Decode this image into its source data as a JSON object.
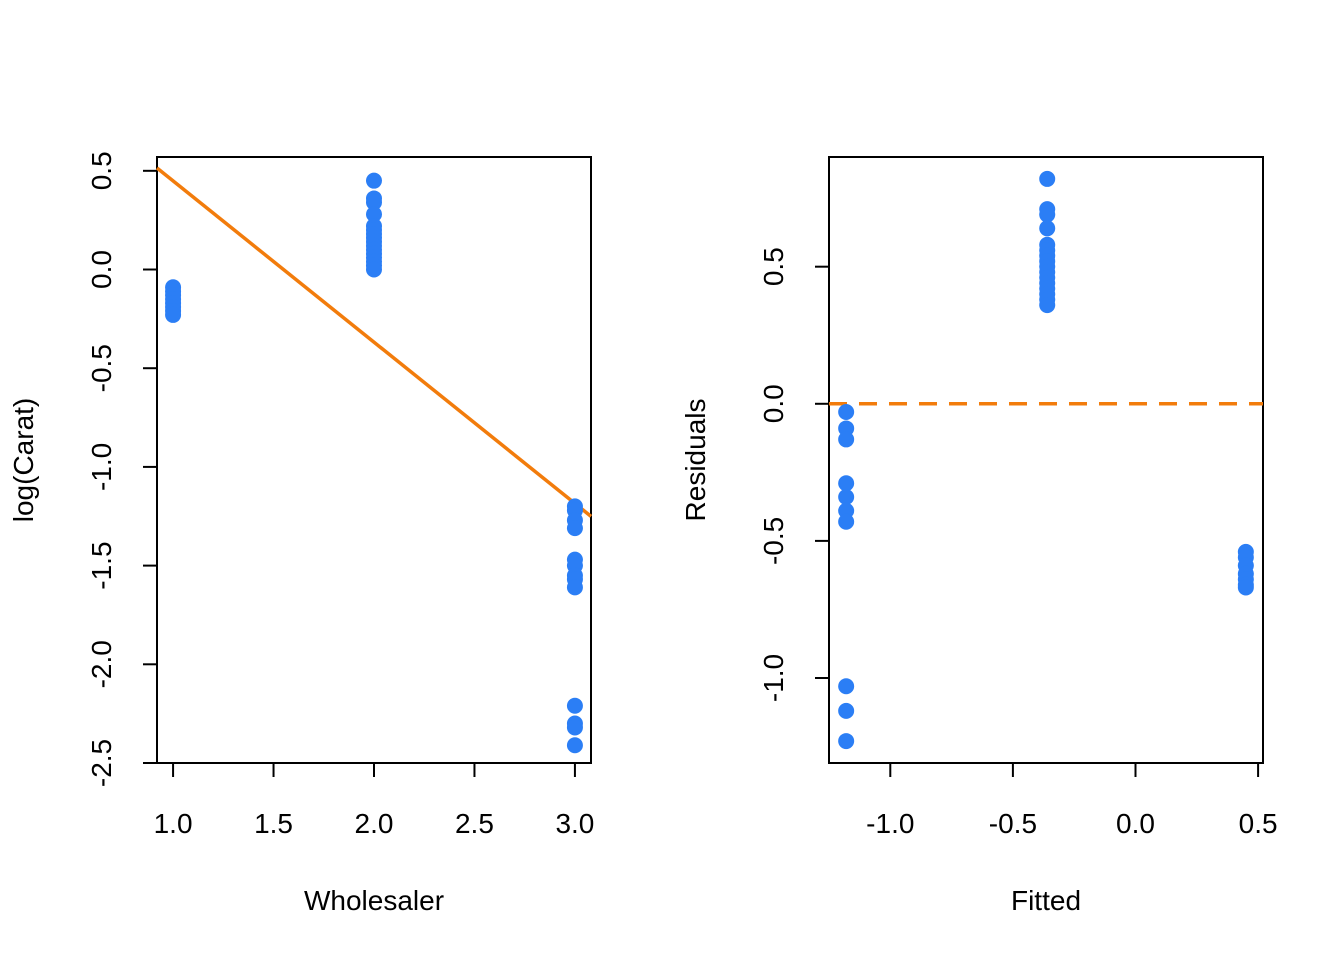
{
  "colors": {
    "points": "#2b7ef5",
    "line": "#f27c0c",
    "axes": "#000000",
    "background": "#ffffff"
  },
  "chart_data": [
    {
      "type": "scatter",
      "xlabel": "Wholesaler",
      "ylabel": "log(Carat)",
      "xlim": [
        0.92,
        3.08
      ],
      "ylim": [
        -2.5,
        0.57
      ],
      "x_ticks": [
        1.0,
        1.5,
        2.0,
        2.5,
        3.0
      ],
      "x_tick_labels": [
        "1.0",
        "1.5",
        "2.0",
        "2.5",
        "3.0"
      ],
      "y_ticks": [
        0.5,
        0.0,
        -0.5,
        -1.0,
        -1.5,
        -2.0,
        -2.5
      ],
      "y_tick_labels": [
        "0.5",
        "0.0",
        "-0.5",
        "-1.0",
        "-1.5",
        "-2.0",
        "-2.5"
      ],
      "grid": false,
      "points": [
        {
          "x": 1,
          "y": -0.09
        },
        {
          "x": 1,
          "y": -0.11
        },
        {
          "x": 1,
          "y": -0.13
        },
        {
          "x": 1,
          "y": -0.15
        },
        {
          "x": 1,
          "y": -0.17
        },
        {
          "x": 1,
          "y": -0.19
        },
        {
          "x": 1,
          "y": -0.21
        },
        {
          "x": 1,
          "y": -0.23
        },
        {
          "x": 2,
          "y": 0.45
        },
        {
          "x": 2,
          "y": 0.36
        },
        {
          "x": 2,
          "y": 0.34
        },
        {
          "x": 2,
          "y": 0.28
        },
        {
          "x": 2,
          "y": 0.22
        },
        {
          "x": 2,
          "y": 0.2
        },
        {
          "x": 2,
          "y": 0.18
        },
        {
          "x": 2,
          "y": 0.16
        },
        {
          "x": 2,
          "y": 0.14
        },
        {
          "x": 2,
          "y": 0.12
        },
        {
          "x": 2,
          "y": 0.1
        },
        {
          "x": 2,
          "y": 0.08
        },
        {
          "x": 2,
          "y": 0.06
        },
        {
          "x": 2,
          "y": 0.04
        },
        {
          "x": 2,
          "y": 0.02
        },
        {
          "x": 2,
          "y": 0.0
        },
        {
          "x": 3,
          "y": -1.2
        },
        {
          "x": 3,
          "y": -1.22
        },
        {
          "x": 3,
          "y": -1.27
        },
        {
          "x": 3,
          "y": -1.31
        },
        {
          "x": 3,
          "y": -1.47
        },
        {
          "x": 3,
          "y": -1.5
        },
        {
          "x": 3,
          "y": -1.55
        },
        {
          "x": 3,
          "y": -1.57
        },
        {
          "x": 3,
          "y": -1.61
        },
        {
          "x": 3,
          "y": -2.21
        },
        {
          "x": 3,
          "y": -2.3
        },
        {
          "x": 3,
          "y": -2.32
        },
        {
          "x": 3,
          "y": -2.41
        }
      ],
      "fit_line": {
        "intercept": 1.266,
        "slope": -0.817,
        "style": "solid"
      }
    },
    {
      "type": "scatter",
      "xlabel": "Fitted",
      "ylabel": "Residuals",
      "xlim": [
        -1.25,
        0.52
      ],
      "ylim": [
        -1.31,
        0.9
      ],
      "x_ticks": [
        -1.0,
        -0.5,
        0.0,
        0.5
      ],
      "x_tick_labels": [
        "-1.0",
        "-0.5",
        "0.0",
        "0.5"
      ],
      "y_ticks": [
        0.5,
        0.0,
        -0.5,
        -1.0
      ],
      "y_tick_labels": [
        "0.5",
        "0.0",
        "-0.5",
        "-1.0"
      ],
      "grid": false,
      "points": [
        {
          "x": -1.18,
          "y": -0.03
        },
        {
          "x": -1.18,
          "y": -0.09
        },
        {
          "x": -1.18,
          "y": -0.13
        },
        {
          "x": -1.18,
          "y": -0.29
        },
        {
          "x": -1.18,
          "y": -0.34
        },
        {
          "x": -1.18,
          "y": -0.39
        },
        {
          "x": -1.18,
          "y": -0.43
        },
        {
          "x": -1.18,
          "y": -1.03
        },
        {
          "x": -1.18,
          "y": -1.12
        },
        {
          "x": -1.18,
          "y": -1.23
        },
        {
          "x": -0.36,
          "y": 0.82
        },
        {
          "x": -0.36,
          "y": 0.71
        },
        {
          "x": -0.36,
          "y": 0.69
        },
        {
          "x": -0.36,
          "y": 0.64
        },
        {
          "x": -0.36,
          "y": 0.58
        },
        {
          "x": -0.36,
          "y": 0.56
        },
        {
          "x": -0.36,
          "y": 0.54
        },
        {
          "x": -0.36,
          "y": 0.52
        },
        {
          "x": -0.36,
          "y": 0.5
        },
        {
          "x": -0.36,
          "y": 0.48
        },
        {
          "x": -0.36,
          "y": 0.46
        },
        {
          "x": -0.36,
          "y": 0.44
        },
        {
          "x": -0.36,
          "y": 0.42
        },
        {
          "x": -0.36,
          "y": 0.4
        },
        {
          "x": -0.36,
          "y": 0.38
        },
        {
          "x": -0.36,
          "y": 0.36
        },
        {
          "x": 0.45,
          "y": -0.54
        },
        {
          "x": 0.45,
          "y": -0.56
        },
        {
          "x": 0.45,
          "y": -0.59
        },
        {
          "x": 0.45,
          "y": -0.62
        },
        {
          "x": 0.45,
          "y": -0.64
        },
        {
          "x": 0.45,
          "y": -0.66
        },
        {
          "x": 0.45,
          "y": -0.67
        }
      ],
      "reference_line": {
        "y": 0,
        "style": "dashed"
      }
    }
  ]
}
